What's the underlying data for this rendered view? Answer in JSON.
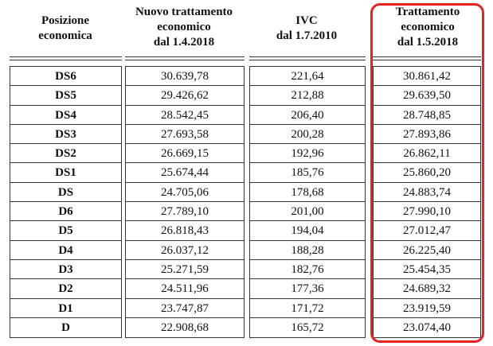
{
  "table": {
    "headers": {
      "position": [
        "Posizione",
        "economica"
      ],
      "new_treatment": [
        "Nuovo trattamento",
        "economico",
        "dal 1.4.2018"
      ],
      "ivc": [
        "IVC",
        "dal 1.7.2010"
      ],
      "treatment": [
        "Trattamento",
        "economico",
        "dal 1.5.2018"
      ]
    },
    "rows": [
      {
        "position": "DS6",
        "new_treatment": "30.639,78",
        "ivc": "221,64",
        "treatment": "30.861,42"
      },
      {
        "position": "DS5",
        "new_treatment": "29.426,62",
        "ivc": "212,88",
        "treatment": "29.639,50"
      },
      {
        "position": "DS4",
        "new_treatment": "28.542,45",
        "ivc": "206,40",
        "treatment": "28.748,85"
      },
      {
        "position": "DS3",
        "new_treatment": "27.693,58",
        "ivc": "200,28",
        "treatment": "27.893,86"
      },
      {
        "position": "DS2",
        "new_treatment": "26.669,15",
        "ivc": "192,96",
        "treatment": "26.862,11"
      },
      {
        "position": "DS1",
        "new_treatment": "25.674,44",
        "ivc": "185,76",
        "treatment": "25.860,20"
      },
      {
        "position": "DS",
        "new_treatment": "24.705,06",
        "ivc": "178,68",
        "treatment": "24.883,74"
      },
      {
        "position": "D6",
        "new_treatment": "27.789,10",
        "ivc": "201,00",
        "treatment": "27.990,10"
      },
      {
        "position": "D5",
        "new_treatment": "26.818,43",
        "ivc": "194,04",
        "treatment": "27.012,47"
      },
      {
        "position": "D4",
        "new_treatment": "26.037,12",
        "ivc": "188,28",
        "treatment": "26.225,40"
      },
      {
        "position": "D3",
        "new_treatment": "25.271,59",
        "ivc": "182,76",
        "treatment": "25.454,35"
      },
      {
        "position": "D2",
        "new_treatment": "24.511,96",
        "ivc": "177,36",
        "treatment": "24.689,32"
      },
      {
        "position": "D1",
        "new_treatment": "23.747,87",
        "ivc": "171,72",
        "treatment": "23.919,59"
      },
      {
        "position": "D",
        "new_treatment": "22.908,68",
        "ivc": "165,72",
        "treatment": "23.074,40"
      }
    ]
  },
  "highlight": {
    "color": "#e8231f"
  }
}
